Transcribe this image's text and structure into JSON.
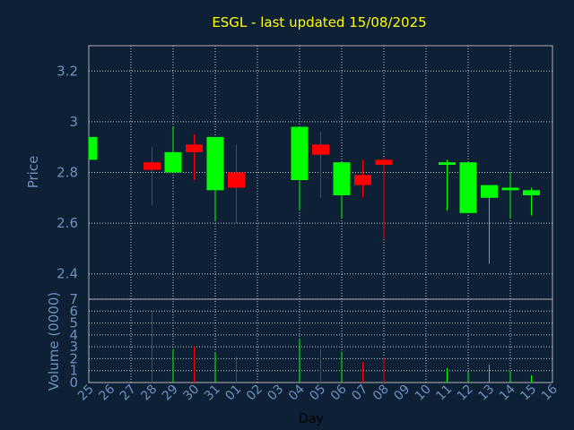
{
  "chart_data": {
    "type": "candlestick",
    "title": "ESGL - last updated 15/08/2025",
    "xlabel": "Day",
    "price_ylabel": "Price",
    "volume_ylabel": "Volume (0000)",
    "price_ylim": [
      2.3,
      3.3
    ],
    "price_yticks": [
      "2.4",
      "2.6",
      "2.8",
      "3",
      "3.2"
    ],
    "price_ytick_values": [
      2.4,
      2.6,
      2.8,
      3.0,
      3.2
    ],
    "volume_ylim": [
      0,
      7
    ],
    "volume_yticks": [
      "0",
      "1",
      "2",
      "3",
      "4",
      "5",
      "6",
      "7"
    ],
    "volume_ytick_values": [
      0,
      1,
      2,
      3,
      4,
      5,
      6,
      7
    ],
    "grid": true,
    "up_color": "#00ff00",
    "down_color": "#ff0000",
    "x_labels": [
      "25",
      "26",
      "27",
      "28",
      "29",
      "30",
      "31",
      "01",
      "02",
      "03",
      "04",
      "05",
      "06",
      "07",
      "08",
      "09",
      "10",
      "11",
      "12",
      "13",
      "14",
      "15",
      "16"
    ],
    "candles": [
      {
        "x": "25",
        "open": 2.85,
        "high": 2.94,
        "low": 2.85,
        "close": 2.94,
        "volume": 0
      },
      {
        "x": "28",
        "open": 2.84,
        "high": 2.9,
        "low": 2.67,
        "close": 2.81,
        "volume": 6.0
      },
      {
        "x": "29",
        "open": 2.8,
        "high": 2.98,
        "low": 2.8,
        "close": 2.88,
        "volume": 2.8
      },
      {
        "x": "30",
        "open": 2.91,
        "high": 2.95,
        "low": 2.77,
        "close": 2.88,
        "volume": 3.0
      },
      {
        "x": "31",
        "open": 2.73,
        "high": 2.94,
        "low": 2.61,
        "close": 2.94,
        "volume": 2.5
      },
      {
        "x": "01",
        "open": 2.8,
        "high": 2.91,
        "low": 2.6,
        "close": 2.74,
        "volume": 2.2
      },
      {
        "x": "04",
        "open": 2.77,
        "high": 2.98,
        "low": 2.65,
        "close": 2.98,
        "volume": 3.7
      },
      {
        "x": "05",
        "open": 2.91,
        "high": 2.96,
        "low": 2.7,
        "close": 2.87,
        "volume": 2.8
      },
      {
        "x": "06",
        "open": 2.71,
        "high": 2.84,
        "low": 2.62,
        "close": 2.84,
        "volume": 2.6
      },
      {
        "x": "07",
        "open": 2.79,
        "high": 2.85,
        "low": 2.7,
        "close": 2.75,
        "volume": 1.7
      },
      {
        "x": "08",
        "open": 2.85,
        "high": 2.86,
        "low": 2.54,
        "close": 2.83,
        "volume": 2.1
      },
      {
        "x": "11",
        "open": 2.83,
        "high": 2.85,
        "low": 2.65,
        "close": 2.84,
        "volume": 1.2
      },
      {
        "x": "12",
        "open": 2.64,
        "high": 2.84,
        "low": 2.64,
        "close": 2.84,
        "volume": 0.9
      },
      {
        "x": "13",
        "open": 2.7,
        "high": 2.75,
        "low": 2.44,
        "close": 2.75,
        "volume": 1.5
      },
      {
        "x": "14",
        "open": 2.73,
        "high": 2.8,
        "low": 2.62,
        "close": 2.74,
        "volume": 1.0
      },
      {
        "x": "15",
        "open": 2.71,
        "high": 2.74,
        "low": 2.63,
        "close": 2.73,
        "volume": 0.6
      }
    ]
  }
}
